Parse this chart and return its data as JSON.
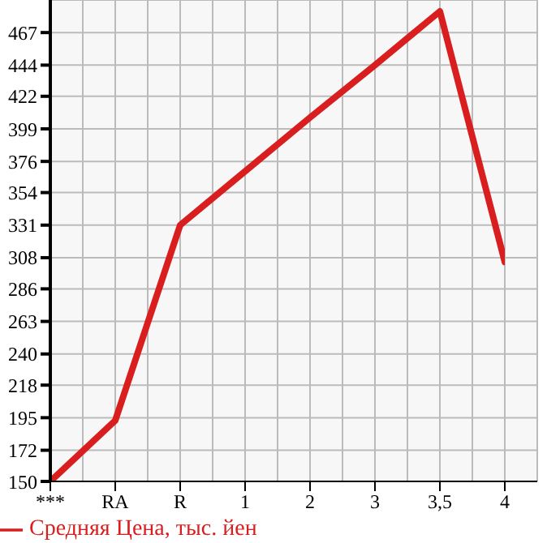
{
  "chart_data": {
    "type": "line",
    "categories": [
      "***",
      "RA",
      "R",
      "1",
      "2",
      "3",
      "3,5",
      "4"
    ],
    "series": [
      {
        "name": "Средняя Цена, тыс. йен",
        "color": "#d81e1e",
        "values": [
          150,
          193,
          331,
          369,
          407,
          444,
          482,
          305
        ]
      }
    ],
    "ylim": [
      150,
      490
    ],
    "yticks": [
      150,
      172,
      195,
      218,
      240,
      263,
      286,
      308,
      331,
      354,
      376,
      399,
      422,
      444,
      467
    ],
    "grid": true,
    "legend": "bottom",
    "marker": "none",
    "line_style": "solid"
  }
}
